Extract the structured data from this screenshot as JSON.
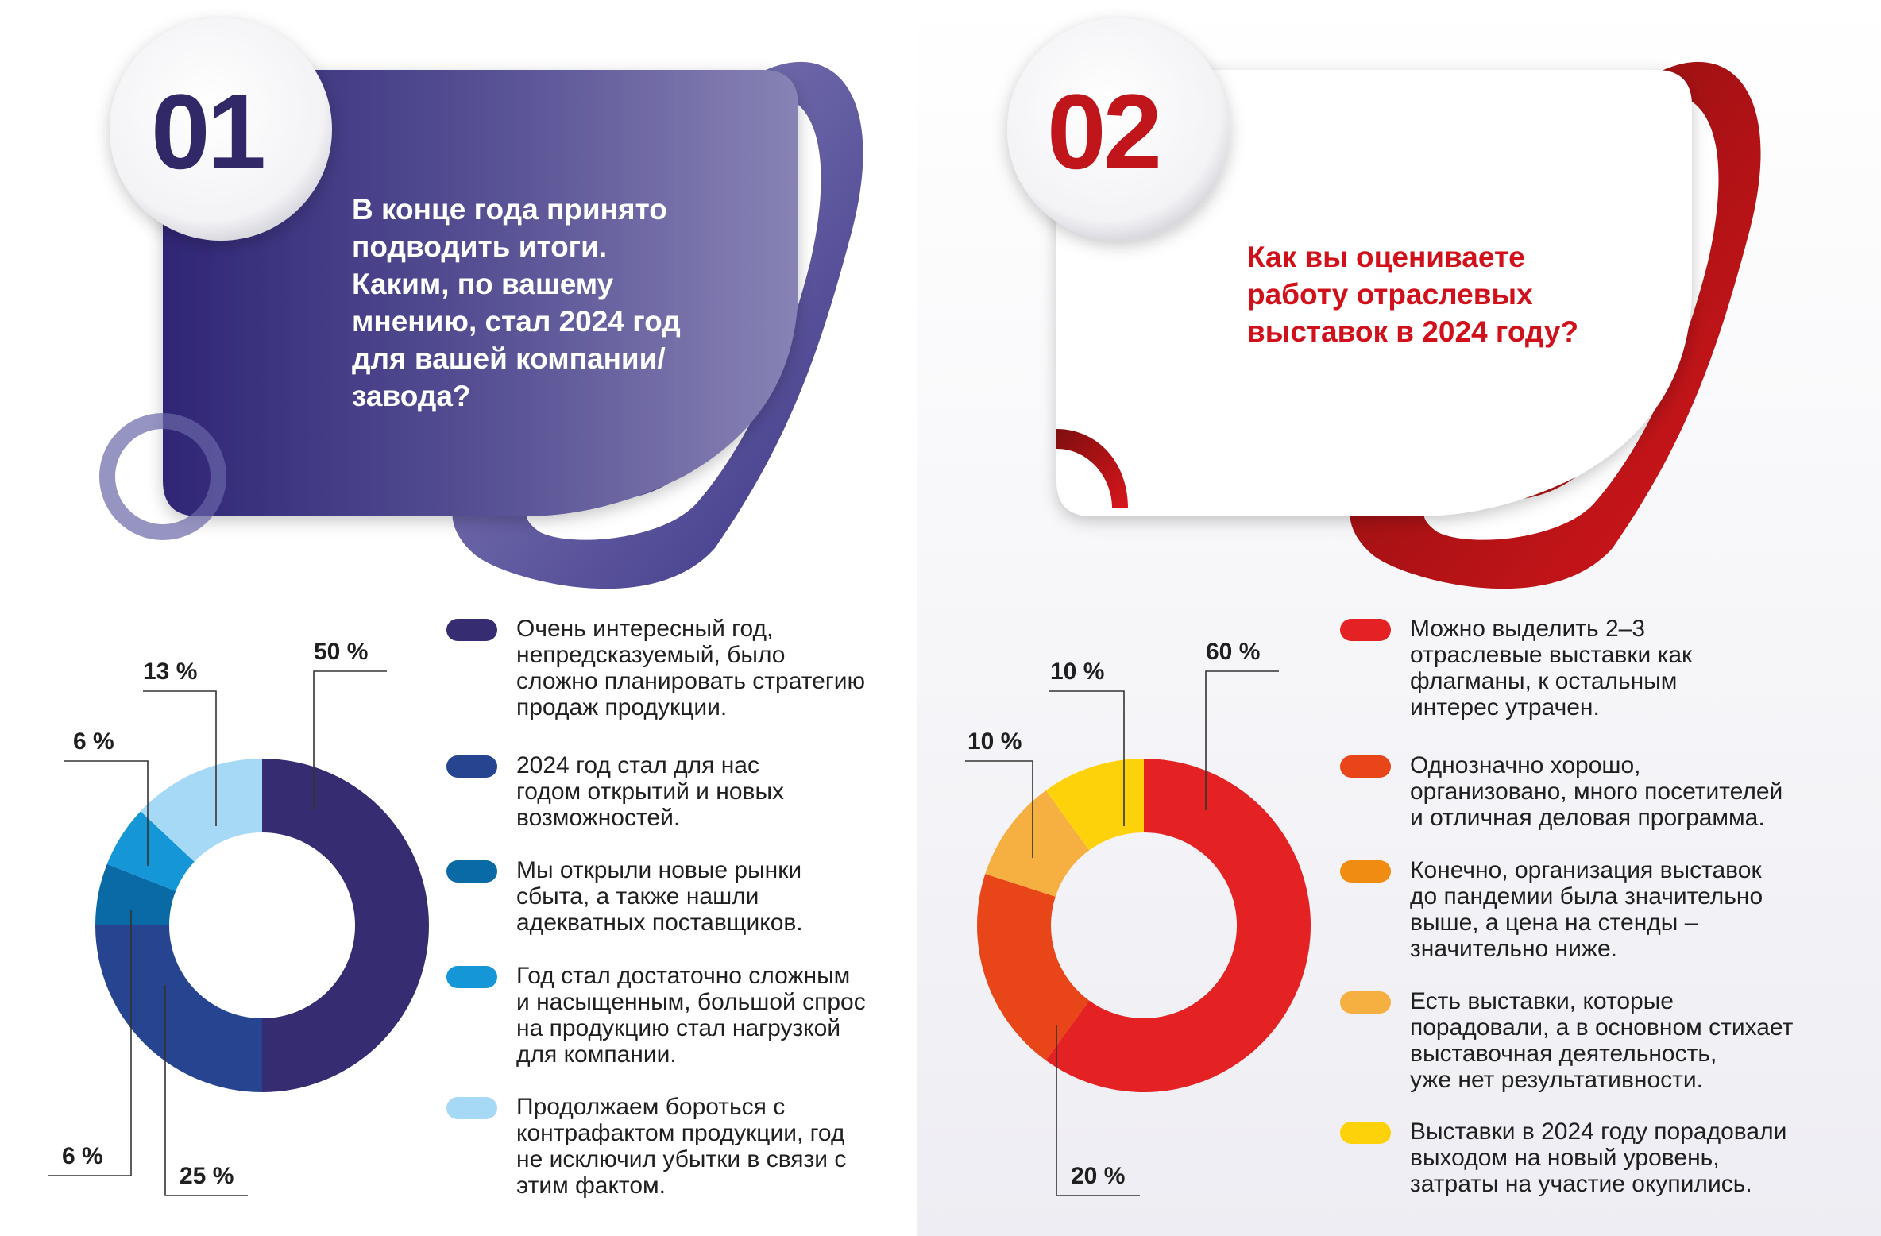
{
  "panel1": {
    "number": "01",
    "question": "В конце года принято\nподводить итоги.\nКаким, по вашему\nмнению, стал 2024 год\nдля вашей компании/\nзавода?",
    "accent": "#3a3080"
  },
  "panel2": {
    "number": "02",
    "question": "Как вы оцениваете\nработу отраслевых\nвыставок в 2024 году?",
    "accent": "#c0151b"
  },
  "chart_data": [
    {
      "type": "pie",
      "donut": true,
      "title": "",
      "categories": [
        "Очень интересный год,\nнепредсказуемый, было\nсложно планировать стратегию\nпродаж продукции.",
        "2024 год стал для нас\nгодом открытий и новых\nвозможностей.",
        "Мы открыли новые рынки\nсбыта, а также нашли\nадекватных поставщиков.",
        "Год стал достаточно сложным\nи насыщенным, большой спрос\nна продукцию стал нагрузкой\nдля компании.",
        "Продолжаем бороться с\nконтрафактом продукции, год\nне исключил убытки в связи с\nэтим фактом."
      ],
      "values": [
        50,
        25,
        6,
        6,
        13
      ],
      "labels": [
        "50 %",
        "25 %",
        "6 %",
        "6 %",
        "13 %"
      ],
      "colors": [
        "#352c72",
        "#26448f",
        "#0a6aa6",
        "#1596d6",
        "#a6d9f5"
      ]
    },
    {
      "type": "pie",
      "donut": true,
      "title": "",
      "categories": [
        "Можно выделить 2–3\nотраслевые выставки как\nфлагманы, к остальным\nинтерес утрачен.",
        "Однозначно хорошо,\nорганизовано, много посетителей\nи отличная деловая программа.",
        "Конечно, организация выставок\nдо пандемии была значительно\nвыше, а цена на стенды –\nзначительно ниже.",
        "Есть выставки, которые\nпорадовали, а в основном стихает\nвыставочная деятельность,\nуже нет результативности.",
        "Выставки в 2024 году порадовали\nвыходом на новый уровень,\nзатраты на участие окупились."
      ],
      "values": [
        60,
        20,
        0,
        10,
        10
      ],
      "labels": [
        "60 %",
        "20 %",
        "",
        "10 %",
        "10 %"
      ],
      "colors": [
        "#e42123",
        "#e84618",
        "#f08c12",
        "#f5b041",
        "#fed20a"
      ]
    }
  ]
}
